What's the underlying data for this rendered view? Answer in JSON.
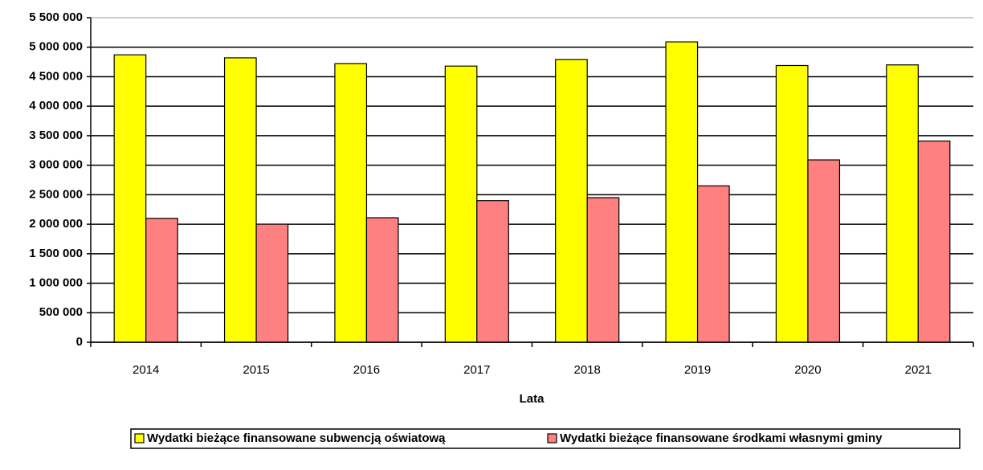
{
  "chart_data": {
    "type": "bar",
    "x_label": "Lata",
    "categories": [
      "2014",
      "2015",
      "2016",
      "2017",
      "2018",
      "2019",
      "2020",
      "2021"
    ],
    "series": [
      {
        "name": "Wydatki bieżące finansowane subwencją oświatową",
        "color": "#ffff00",
        "values": [
          4870000,
          4820000,
          4720000,
          4680000,
          4790000,
          5090000,
          4690000,
          4700000
        ]
      },
      {
        "name": "Wydatki bieżące finansowane środkami własnymi gminy",
        "color": "#ff8080",
        "values": [
          2100000,
          2000000,
          2110000,
          2400000,
          2450000,
          2650000,
          3090000,
          3410000
        ]
      }
    ],
    "ylim": [
      0,
      5500000
    ],
    "yticks": [
      0,
      {
        "value": 500000,
        "label": "500 000"
      },
      {
        "value": 1000000,
        "label": "1 000 000"
      },
      {
        "value": 1500000,
        "label": "1 500 000"
      },
      {
        "value": 2000000,
        "label": "2 000 000"
      },
      {
        "value": 2500000,
        "label": "2 500 000"
      },
      {
        "value": 3000000,
        "label": "3 000 000"
      },
      {
        "value": 3500000,
        "label": "3 500 000"
      },
      {
        "value": 4000000,
        "label": "4 000 000"
      },
      {
        "value": 4500000,
        "label": "4 500 000"
      },
      {
        "value": 5000000,
        "label": "5 000 000"
      },
      {
        "value": 5500000,
        "label": "5 500 000"
      }
    ],
    "grid": true,
    "legend": "bottom"
  }
}
